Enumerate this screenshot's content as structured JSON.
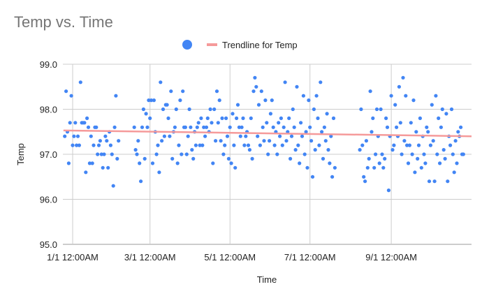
{
  "chart_data": {
    "type": "scatter",
    "title": "Temp vs. Time",
    "xlabel": "Time",
    "ylabel": "Temp",
    "ylim": [
      95.0,
      99.0
    ],
    "yticks": [
      "95.0",
      "96.0",
      "97.0",
      "98.0",
      "99.0"
    ],
    "x_unit": "days since 1/1",
    "xlim_days": [
      -7,
      305
    ],
    "xticks": [
      {
        "label": "1/1 12:00AM",
        "day": 0
      },
      {
        "label": "3/1 12:00AM",
        "day": 59
      },
      {
        "label": "5/1 12:00AM",
        "day": 120
      },
      {
        "label": "7/1 12:00AM",
        "day": 181
      },
      {
        "label": "9/1 12:00AM",
        "day": 243
      }
    ],
    "grid": true,
    "legend": {
      "position": "top",
      "entries": [
        {
          "name": "",
          "color": "#4285f4",
          "shape": "circle"
        },
        {
          "name": "Trendline for Temp",
          "color": "#f59a9a",
          "shape": "line"
        }
      ]
    },
    "series": [
      {
        "name": "Temp",
        "color": "#4285f4",
        "segments": [
          {
            "start_day": -6,
            "temps": [
              97.4,
              98.4,
              97.5,
              96.8,
              97.7,
              98.3,
              97.2,
              97.4,
              97.7,
              97.2,
              97.4,
              97.2,
              98.6,
              97.7,
              97.7,
              97.7,
              96.6,
              97.8,
              97.6,
              96.8,
              97.4,
              96.8,
              97.2,
              97.6,
              97.6,
              97.0,
              97.2,
              97.3,
              97.0,
              96.7,
              97.0,
              97.4,
              97.3,
              96.7,
              97.5,
              97.2,
              97.0,
              96.3,
              97.6,
              98.3,
              96.9,
              97.3
            ]
          },
          {
            "start_day": 47,
            "temps": [
              97.6,
              97.1,
              97.0,
              97.3,
              96.8,
              96.4,
              97.6,
              98.0,
              96.9,
              97.9,
              97.6,
              98.2,
              97.8,
              98.2,
              96.8,
              98.2,
              97.5,
              97.0,
              97.2,
              96.6,
              98.6,
              97.3,
              98.0,
              97.4,
              98.1,
              98.1,
              97.8,
              97.4,
              98.4,
              96.9,
              97.5,
              97.6,
              98.0,
              96.8,
              97.2,
              98.2,
              97.0,
              98.4,
              97.6,
              97.6,
              97.0,
              97.4,
              98.0,
              97.6,
              97.1,
              96.9,
              97.5,
              97.2,
              97.6,
              97.7,
              97.2,
              97.8,
              97.2,
              97.6,
              97.4,
              97.6,
              97.8,
              97.5,
              98.0,
              97.7,
              96.8,
              98.0,
              97.3,
              98.4,
              97.7,
              98.2,
              97.3,
              97.8,
              97.0,
              97.2,
              97.8,
              97.4,
              96.9,
              97.6,
              96.8,
              97.9,
              97.2,
              96.7,
              97.8,
              98.1,
              97.6,
              97.4,
              97.6,
              97.8,
              97.2,
              97.4,
              97.5,
              97.2,
              97.1,
              97.8,
              96.9,
              98.4,
              98.7,
              98.5,
              97.4,
              98.1,
              97.2,
              98.4,
              97.6,
              97.3,
              98.2,
              97.7,
              97.0,
              97.3,
              97.9,
              98.2,
              97.6,
              97.2,
              97.5,
              97.0,
              97.7,
              97.4,
              97.8,
              97.2,
              97.6,
              98.6,
              97.3,
              97.5,
              97.8,
              96.9,
              97.4,
              98.0,
              97.6,
              97.1,
              98.5,
              97.2,
              96.8,
              97.7,
              97.4,
              98.3,
              97.0,
              97.5,
              96.7,
              98.2,
              97.6,
              97.3,
              96.5,
              98.0,
              97.1,
              98.3,
              97.8,
              97.2,
              98.6,
              97.5,
              96.9,
              97.6,
              97.3,
              97.9,
              97.1,
              96.8,
              97.4,
              96.5,
              97.8,
              96.7
            ]
          },
          {
            "start_day": 219,
            "temps": [
              97.1,
              98.0,
              97.2,
              96.5,
              96.4,
              97.3,
              96.7,
              96.9,
              98.4,
              97.5,
              97.8,
              96.7,
              97.0,
              98.0,
              97.4,
              96.8,
              98.0,
              97.0,
              96.7,
              96.9,
              97.8,
              97.6,
              96.2,
              97.4,
              98.3,
              97.1,
              97.2,
              98.1,
              97.6,
              97.4,
              98.5,
              97.7,
              97.0,
              98.7,
              97.3,
              98.3,
              97.2,
              96.8,
              97.2,
              97.7,
              97.0,
              98.2,
              96.6,
              97.5,
              96.9,
              97.2,
              97.8,
              96.7,
              97.4,
              97.0,
              96.8,
              97.6,
              97.5,
              96.4,
              97.2,
              98.1,
              97.3,
              96.4,
              98.3,
              97.0,
              97.8,
              96.8,
              97.6,
              98.0,
              97.1,
              96.9,
              97.9,
              96.4,
              97.4,
              97.2,
              98.0,
              97.0,
              96.6,
              97.3,
              96.8,
              97.5,
              97.4,
              97.6,
              97.0,
              97.0
            ]
          }
        ]
      },
      {
        "name": "Trendline for Temp",
        "type": "linear",
        "color": "#f59a9a",
        "points": [
          [
            -7,
            97.53
          ],
          [
            305,
            97.4
          ]
        ]
      }
    ]
  }
}
